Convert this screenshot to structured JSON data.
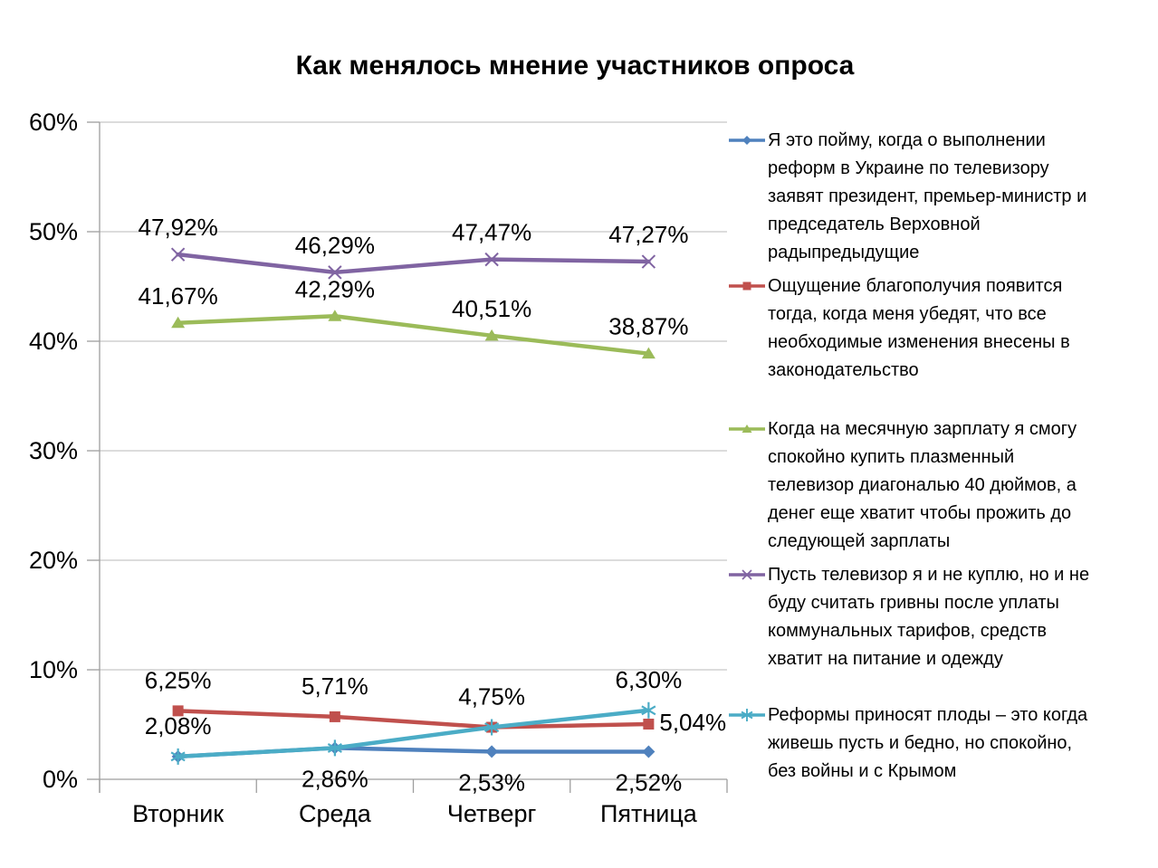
{
  "title": "Как менялось мнение участников опроса",
  "chart_data": {
    "type": "line",
    "categories": [
      "Вторник",
      "Среда",
      "Четверг",
      "Пятница"
    ],
    "ylim": [
      0,
      60
    ],
    "y_tick_step": 10,
    "y_tick_labels": [
      "0%",
      "10%",
      "20%",
      "30%",
      "40%",
      "50%",
      "60%"
    ],
    "grid": true,
    "legend_position": "right",
    "series": [
      {
        "id": "understand-when-tv-announces",
        "color": "#4F81BD",
        "marker": "diamond",
        "values": [
          2.08,
          2.86,
          2.53,
          2.52
        ],
        "point_labels": [
          "2,08%",
          "2,86%",
          "2,53%",
          "2,52%"
        ],
        "label_pos": [
          "above",
          "below",
          "below",
          "below"
        ],
        "legend_lines": [
          "Я это пойму, когда о выполнении",
          "реформ в Украине по телевизору",
          "заявят президент, премьер-министр и",
          "председатель Верховной",
          "радыпредыдущие"
        ]
      },
      {
        "id": "wellbeing-when-laws-changed",
        "color": "#C0504D",
        "marker": "square",
        "values": [
          6.25,
          5.71,
          4.75,
          5.04
        ],
        "point_labels": [
          "6,25%",
          "5,71%",
          "4,75%",
          "5,04%"
        ],
        "label_pos": [
          "above",
          "above",
          "above",
          "right"
        ],
        "legend_lines": [
          "Ощущение благополучия появится",
          "тогда, когда меня убедят, что все",
          "необходимые изменения внесены в",
          "законодательство"
        ]
      },
      {
        "id": "salary-buys-plasma-tv",
        "color": "#9BBB59",
        "marker": "triangle",
        "values": [
          41.67,
          42.29,
          40.51,
          38.87
        ],
        "point_labels": [
          "41,67%",
          "42,29%",
          "40,51%",
          "38,87%"
        ],
        "label_pos": [
          "above",
          "above",
          "above",
          "above"
        ],
        "legend_lines": [
          "Когда на месячную зарплату я смогу",
          "спокойно купить плазменный",
          "телевизор диагональю 40 дюймов, а",
          "денег еще хватит чтобы прожить до",
          "следующей зарплаты"
        ]
      },
      {
        "id": "no-tv-but-enough-for-food-clothes",
        "color": "#8064A2",
        "marker": "x",
        "values": [
          47.92,
          46.29,
          47.47,
          47.27
        ],
        "point_labels": [
          "47,92%",
          "46,29%",
          "47,47%",
          "47,27%"
        ],
        "label_pos": [
          "above",
          "above",
          "above",
          "above"
        ],
        "legend_lines": [
          "Пусть телевизор я и не куплю, но и не",
          "буду считать гривны после уплаты",
          "коммунальных тарифов, средств",
          "хватит на питание и одежду"
        ]
      },
      {
        "id": "reforms-peace-no-war-crimea",
        "color": "#4BACC6",
        "marker": "star",
        "values": [
          2.08,
          2.86,
          4.75,
          6.3
        ],
        "point_labels": [
          "",
          "",
          "",
          "6,30%"
        ],
        "label_pos": [
          "above",
          "above",
          "above",
          "above"
        ],
        "legend_lines": [
          "Реформы приносят плоды – это когда",
          "живешь пусть и бедно, но спокойно,",
          "без войны и с Крымом"
        ]
      }
    ]
  }
}
